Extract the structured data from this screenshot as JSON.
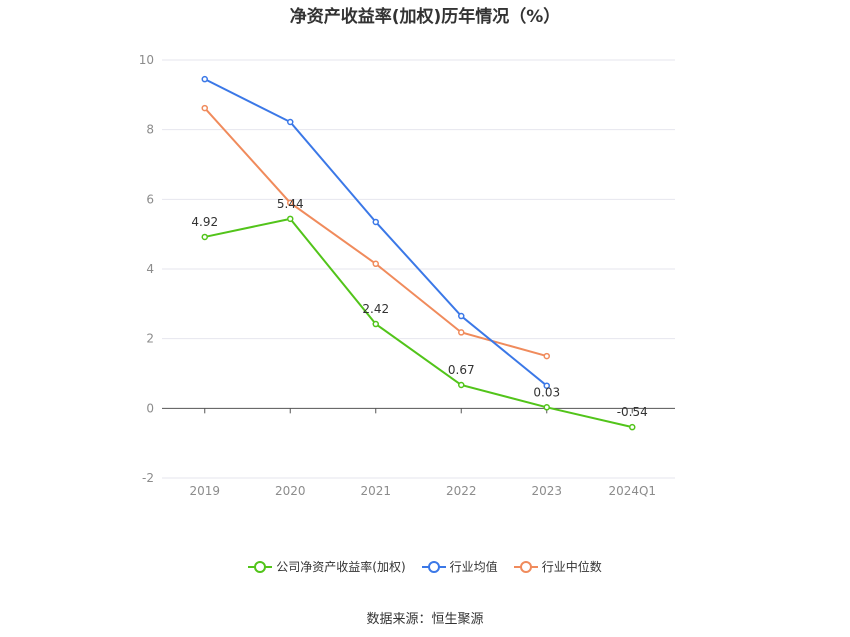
{
  "title": "净资产收益率(加权)历年情况（%）",
  "source": "数据来源：恒生聚源",
  "chart_data": {
    "type": "line",
    "categories": [
      "2019",
      "2020",
      "2021",
      "2022",
      "2023",
      "2024Q1"
    ],
    "ylim": [
      -2,
      10
    ],
    "yticks": [
      -2,
      0,
      2,
      4,
      6,
      8,
      10
    ],
    "grid": true,
    "legend_position": "bottom",
    "series": [
      {
        "name": "公司净资产收益率(加权)",
        "color": "#52c41a",
        "values": [
          4.92,
          5.44,
          2.42,
          0.67,
          0.03,
          -0.54
        ],
        "labels": [
          "4.92",
          "5.44",
          "2.42",
          "0.67",
          "0.03",
          "-0.54"
        ]
      },
      {
        "name": "行业均值",
        "color": "#3b78e7",
        "values": [
          9.45,
          8.22,
          5.35,
          2.65,
          0.65,
          null
        ]
      },
      {
        "name": "行业中位数",
        "color": "#f08b5c",
        "values": [
          8.62,
          5.9,
          4.15,
          2.18,
          1.5,
          null
        ]
      }
    ]
  }
}
